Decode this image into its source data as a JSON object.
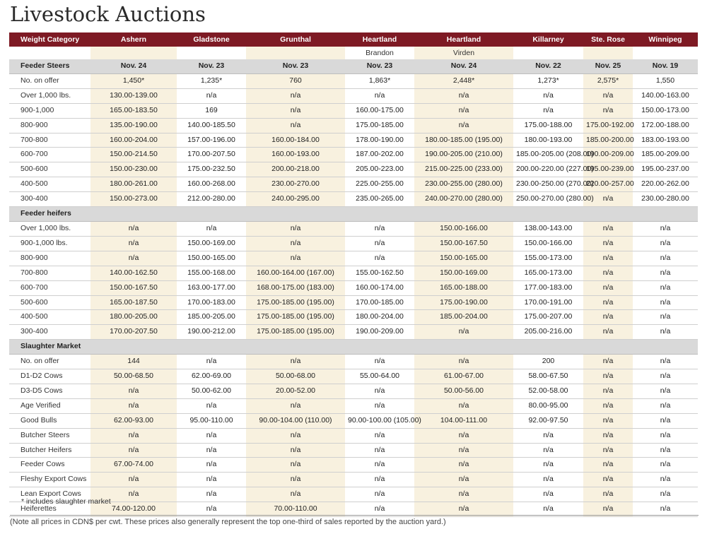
{
  "page_title": "Livestock Auctions",
  "columns": [
    {
      "name": "Ashern",
      "location": ""
    },
    {
      "name": "Gladstone",
      "location": ""
    },
    {
      "name": "Grunthal",
      "location": ""
    },
    {
      "name": "Heartland",
      "location": "Brandon"
    },
    {
      "name": "Heartland",
      "location": "Virden"
    },
    {
      "name": "Killarney",
      "location": ""
    },
    {
      "name": "Ste. Rose",
      "location": ""
    },
    {
      "name": "Winnipeg",
      "location": ""
    }
  ],
  "header_first": "Weight Category",
  "sections": [
    {
      "title": "Feeder Steers",
      "dates": [
        "Nov. 24",
        "Nov. 23",
        "Nov. 23",
        "Nov. 23",
        "Nov. 24",
        "Nov. 22",
        "Nov. 25",
        "Nov. 19"
      ],
      "rows": [
        {
          "label": "No. on offer",
          "values": [
            "1,450*",
            "1,235*",
            "760",
            "1,863*",
            "2,448*",
            "1,273*",
            "2,575*",
            "1,550"
          ]
        },
        {
          "label": "Over 1,000 lbs.",
          "values": [
            "130.00-139.00",
            "n/a",
            "n/a",
            "n/a",
            "n/a",
            "n/a",
            "n/a",
            "140.00-163.00"
          ]
        },
        {
          "label": "900-1,000",
          "values": [
            "165.00-183.50",
            "169",
            "n/a",
            "160.00-175.00",
            "n/a",
            "n/a",
            "n/a",
            "150.00-173.00"
          ]
        },
        {
          "label": "800-900",
          "values": [
            "135.00-190.00",
            "140.00-185.50",
            "n/a",
            "175.00-185.00",
            "n/a",
            "175.00-188.00",
            "175.00-192.00",
            "172.00-188.00"
          ]
        },
        {
          "label": "700-800",
          "values": [
            "160.00-204.00",
            "157.00-196.00",
            "160.00-184.00",
            "178.00-190.00",
            "180.00-185.00 (195.00)",
            "180.00-193.00",
            "185.00-200.00",
            "183.00-193.00"
          ]
        },
        {
          "label": "600-700",
          "values": [
            "150.00-214.50",
            "170.00-207.50",
            "160.00-193.00",
            "187.00-202.00",
            "190.00-205.00 (210.00)",
            "185.00-205.00 (208.00)",
            "190.00-209.00",
            "185.00-209.00"
          ]
        },
        {
          "label": "500-600",
          "values": [
            "150.00-230.00",
            "175.00-232.50",
            "200.00-218.00",
            "205.00-223.00",
            "215.00-225.00 (233.00)",
            "200.00-220.00 (227.00)",
            "195.00-239.00",
            "195.00-237.00"
          ]
        },
        {
          "label": "400-500",
          "values": [
            "180.00-261.00",
            "160.00-268.00",
            "230.00-270.00",
            "225.00-255.00",
            "230.00-255.00 (280.00)",
            "230.00-250.00 (270.00)",
            "220.00-257.00",
            "220.00-262.00"
          ]
        },
        {
          "label": "300-400",
          "values": [
            "150.00-273.00",
            "212.00-280.00",
            "240.00-295.00",
            "235.00-265.00",
            "240.00-270.00 (280.00)",
            "250.00-270.00 (280.00)",
            "n/a",
            "230.00-280.00"
          ]
        }
      ]
    },
    {
      "title": "Feeder heifers",
      "dates": [
        "",
        "",
        "",
        "",
        "",
        "",
        "",
        ""
      ],
      "rows": [
        {
          "label": "Over 1,000 lbs.",
          "values": [
            "n/a",
            "n/a",
            "n/a",
            "n/a",
            "150.00-166.00",
            "138.00-143.00",
            "n/a",
            "n/a"
          ]
        },
        {
          "label": "900-1,000 lbs.",
          "values": [
            "n/a",
            "150.00-169.00",
            "n/a",
            "n/a",
            "150.00-167.50",
            "150.00-166.00",
            "n/a",
            "n/a"
          ]
        },
        {
          "label": "800-900",
          "values": [
            "n/a",
            "150.00-165.00",
            "n/a",
            "n/a",
            "150.00-165.00",
            "155.00-173.00",
            "n/a",
            "n/a"
          ]
        },
        {
          "label": "700-800",
          "values": [
            "140.00-162.50",
            "155.00-168.00",
            "160.00-164.00 (167.00)",
            "155.00-162.50",
            "150.00-169.00",
            "165.00-173.00",
            "n/a",
            "n/a"
          ]
        },
        {
          "label": "600-700",
          "values": [
            "150.00-167.50",
            "163.00-177.00",
            "168.00-175.00 (183.00)",
            "160.00-174.00",
            "165.00-188.00",
            "177.00-183.00",
            "n/a",
            "n/a"
          ]
        },
        {
          "label": "500-600",
          "values": [
            "165.00-187.50",
            "170.00-183.00",
            "175.00-185.00 (195.00)",
            "170.00-185.00",
            "175.00-190.00",
            "170.00-191.00",
            "n/a",
            "n/a"
          ]
        },
        {
          "label": "400-500",
          "values": [
            "180.00-205.00",
            "185.00-205.00",
            "175.00-185.00 (195.00)",
            "180.00-204.00",
            "185.00-204.00",
            "175.00-207.00",
            "n/a",
            "n/a"
          ]
        },
        {
          "label": "300-400",
          "values": [
            "170.00-207.50",
            "190.00-212.00",
            "175.00-185.00 (195.00)",
            "190.00-209.00",
            "n/a",
            "205.00-216.00",
            "n/a",
            "n/a"
          ]
        }
      ]
    },
    {
      "title": "Slaughter Market",
      "dates": [
        "",
        "",
        "",
        "",
        "",
        "",
        "",
        ""
      ],
      "rows": [
        {
          "label": "No. on offer",
          "values": [
            "144",
            "n/a",
            "n/a",
            "n/a",
            "n/a",
            "200",
            "n/a",
            "n/a"
          ]
        },
        {
          "label": "D1-D2 Cows",
          "values": [
            "50.00-68.50",
            "62.00-69.00",
            "50.00-68.00",
            "55.00-64.00",
            "61.00-67.00",
            "58.00-67.50",
            "n/a",
            "n/a"
          ]
        },
        {
          "label": "D3-D5 Cows",
          "values": [
            "n/a",
            "50.00-62.00",
            "20.00-52.00",
            "n/a",
            "50.00-56.00",
            "52.00-58.00",
            "n/a",
            "n/a"
          ]
        },
        {
          "label": "Age Verified",
          "values": [
            "n/a",
            "n/a",
            "n/a",
            "n/a",
            "n/a",
            "80.00-95.00",
            "n/a",
            "n/a"
          ]
        },
        {
          "label": "Good Bulls",
          "values": [
            "62.00-93.00",
            "95.00-110.00",
            "90.00-104.00 (110.00)",
            "90.00-100.00 (105.00)",
            "104.00-111.00",
            "92.00-97.50",
            "n/a",
            "n/a"
          ]
        },
        {
          "label": "Butcher Steers",
          "values": [
            "n/a",
            "n/a",
            "n/a",
            "n/a",
            "n/a",
            "n/a",
            "n/a",
            "n/a"
          ]
        },
        {
          "label": "Butcher Heifers",
          "values": [
            "n/a",
            "n/a",
            "n/a",
            "n/a",
            "n/a",
            "n/a",
            "n/a",
            "n/a"
          ]
        },
        {
          "label": "Feeder Cows",
          "values": [
            "67.00-74.00",
            "n/a",
            "n/a",
            "n/a",
            "n/a",
            "n/a",
            "n/a",
            "n/a"
          ]
        },
        {
          "label": "Fleshy Export Cows",
          "values": [
            "n/a",
            "n/a",
            "n/a",
            "n/a",
            "n/a",
            "n/a",
            "n/a",
            "n/a"
          ]
        },
        {
          "label": "Lean Export Cows",
          "values": [
            "n/a",
            "n/a",
            "n/a",
            "n/a",
            "n/a",
            "n/a",
            "n/a",
            "n/a"
          ]
        },
        {
          "label": "Heiferettes",
          "values": [
            "74.00-120.00",
            "n/a",
            "70.00-110.00",
            "n/a",
            "n/a",
            "n/a",
            "n/a",
            "n/a"
          ]
        }
      ]
    }
  ],
  "footnote": "* includes slaughter market",
  "note": "(Note all prices in CDN$ per cwt. These prices also generally represent the top one-third of sales reported by the auction yard.)",
  "colors": {
    "header_bg": "#7e1a24",
    "section_bg": "#d9d9d9",
    "shade": "#f8f1df"
  }
}
